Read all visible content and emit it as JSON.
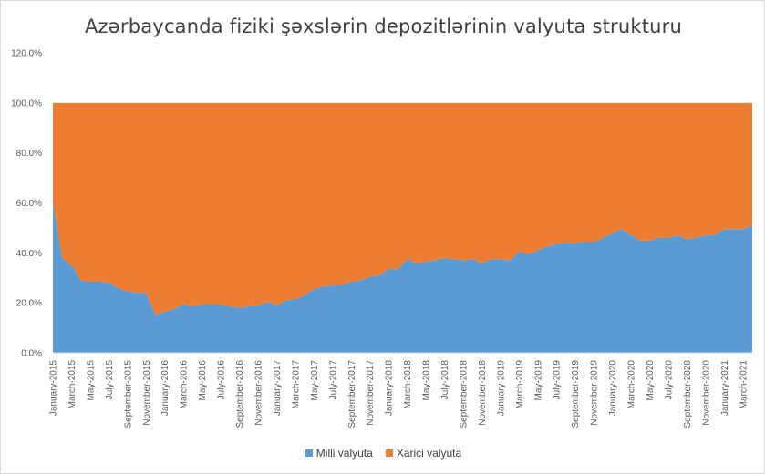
{
  "chart_data": {
    "type": "area",
    "stacked": true,
    "title": "Azərbaycanda fiziki şəxslərin depozitlərinin valyuta strukturu",
    "xlabel": "",
    "ylabel": "",
    "ylim": [
      0,
      1.2
    ],
    "yticks": [
      "0.0%",
      "20.0%",
      "40.0%",
      "60.0%",
      "80.0%",
      "100.0%",
      "120.0%"
    ],
    "grid": false,
    "legend_position": "bottom",
    "x": [
      "January-2015",
      "February-2015",
      "March-2015",
      "April-2015",
      "May-2015",
      "June-2015",
      "July-2015",
      "August-2015",
      "September-2015",
      "October-2015",
      "November-2015",
      "December-2015",
      "January-2016",
      "February-2016",
      "March-2016",
      "April-2016",
      "May-2016",
      "June-2016",
      "July-2016",
      "August-2016",
      "September-2016",
      "October-2016",
      "November-2016",
      "December-2016",
      "January-2017",
      "February-2017",
      "March-2017",
      "April-2017",
      "May-2017",
      "June-2017",
      "July-2017",
      "August-2017",
      "September-2017",
      "October-2017",
      "November-2017",
      "December-2017",
      "January-2018",
      "February-2018",
      "March-2018",
      "April-2018",
      "May-2018",
      "June-2018",
      "July-2018",
      "August-2018",
      "September-2018",
      "October-2018",
      "November-2018",
      "December-2018",
      "January-2019",
      "February-2019",
      "March-2019",
      "April-2019",
      "May-2019",
      "June-2019",
      "July-2019",
      "August-2019",
      "September-2019",
      "October-2019",
      "November-2019",
      "December-2019",
      "January-2020",
      "February-2020",
      "March-2020",
      "April-2020",
      "May-2020",
      "June-2020",
      "July-2020",
      "August-2020",
      "September-2020",
      "October-2020",
      "November-2020",
      "December-2020",
      "January-2021",
      "February-2021",
      "March-2021",
      "April-2021"
    ],
    "x_tick_labels": [
      "January-2015",
      "March-2015",
      "May-2015",
      "July-2015",
      "September-2015",
      "November-2015",
      "January-2016",
      "March-2016",
      "May-2016",
      "July-2016",
      "September-2016",
      "November-2016",
      "January-2017",
      "March-2017",
      "May-2017",
      "July-2017",
      "September-2017",
      "November-2017",
      "January-2018",
      "March-2018",
      "May-2018",
      "July-2018",
      "September-2018",
      "November-2018",
      "January-2019",
      "March-2019",
      "May-2019",
      "July-2019",
      "September-2019",
      "November-2019",
      "January-2020",
      "March-2020",
      "May-2020",
      "July-2020",
      "September-2020",
      "November-2020",
      "January-2021",
      "March-2021"
    ],
    "series": [
      {
        "name": "Milli valyuta",
        "color": "#5b9bd5",
        "values": [
          0.6,
          0.38,
          0.35,
          0.29,
          0.285,
          0.285,
          0.28,
          0.26,
          0.245,
          0.24,
          0.24,
          0.15,
          0.165,
          0.175,
          0.195,
          0.185,
          0.195,
          0.195,
          0.195,
          0.185,
          0.18,
          0.185,
          0.19,
          0.205,
          0.19,
          0.21,
          0.215,
          0.23,
          0.255,
          0.265,
          0.27,
          0.27,
          0.285,
          0.29,
          0.305,
          0.31,
          0.335,
          0.335,
          0.375,
          0.36,
          0.365,
          0.37,
          0.38,
          0.375,
          0.37,
          0.375,
          0.36,
          0.375,
          0.375,
          0.37,
          0.405,
          0.395,
          0.41,
          0.425,
          0.435,
          0.44,
          0.44,
          0.445,
          0.445,
          0.46,
          0.48,
          0.495,
          0.47,
          0.45,
          0.45,
          0.46,
          0.46,
          0.47,
          0.455,
          0.46,
          0.47,
          0.47,
          0.495,
          0.495,
          0.495,
          0.51
        ]
      },
      {
        "name": "Xarici valyuta",
        "color": "#ed7d31",
        "values": [
          0.4,
          0.62,
          0.65,
          0.71,
          0.715,
          0.715,
          0.72,
          0.74,
          0.755,
          0.76,
          0.76,
          0.85,
          0.835,
          0.825,
          0.805,
          0.815,
          0.805,
          0.805,
          0.805,
          0.815,
          0.82,
          0.815,
          0.81,
          0.795,
          0.81,
          0.79,
          0.785,
          0.77,
          0.745,
          0.735,
          0.73,
          0.73,
          0.715,
          0.71,
          0.695,
          0.69,
          0.665,
          0.665,
          0.625,
          0.64,
          0.635,
          0.63,
          0.62,
          0.625,
          0.63,
          0.625,
          0.64,
          0.625,
          0.625,
          0.63,
          0.595,
          0.605,
          0.59,
          0.575,
          0.565,
          0.56,
          0.56,
          0.555,
          0.555,
          0.54,
          0.52,
          0.505,
          0.53,
          0.55,
          0.55,
          0.54,
          0.54,
          0.53,
          0.545,
          0.54,
          0.53,
          0.53,
          0.505,
          0.505,
          0.505,
          0.49
        ]
      }
    ]
  }
}
